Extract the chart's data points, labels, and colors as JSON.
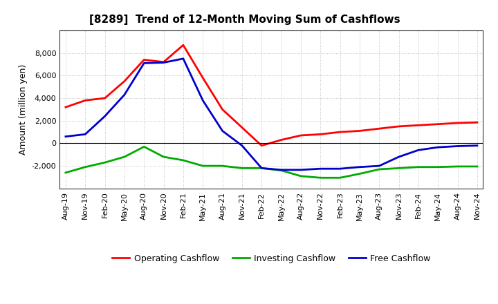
{
  "title": "[8289]  Trend of 12-Month Moving Sum of Cashflows",
  "ylabel": "Amount (million yen)",
  "x_labels": [
    "Aug-19",
    "Nov-19",
    "Feb-20",
    "May-20",
    "Aug-20",
    "Nov-20",
    "Feb-21",
    "May-21",
    "Aug-21",
    "Nov-21",
    "Feb-22",
    "May-22",
    "Aug-22",
    "Nov-22",
    "Feb-23",
    "May-23",
    "Aug-23",
    "Nov-23",
    "Feb-24",
    "May-24",
    "Aug-24",
    "Nov-24"
  ],
  "operating": [
    3200,
    3800,
    4000,
    5500,
    7400,
    7200,
    8700,
    5800,
    3000,
    1400,
    -200,
    300,
    700,
    800,
    1000,
    1100,
    1300,
    1500,
    1600,
    1700,
    1800,
    1850
  ],
  "investing": [
    -2600,
    -2100,
    -1700,
    -1200,
    -300,
    -1200,
    -1500,
    -2000,
    -2000,
    -2200,
    -2200,
    -2400,
    -2900,
    -3050,
    -3050,
    -2700,
    -2300,
    -2200,
    -2100,
    -2100,
    -2050,
    -2050
  ],
  "free": [
    600,
    800,
    2400,
    4300,
    7100,
    7150,
    7500,
    3800,
    1100,
    -200,
    -2200,
    -2350,
    -2350,
    -2250,
    -2250,
    -2100,
    -2000,
    -1200,
    -600,
    -350,
    -250,
    -200
  ],
  "operating_color": "#ff0000",
  "investing_color": "#00aa00",
  "free_color": "#0000cc",
  "ylim": [
    -4000,
    10000
  ],
  "yticks": [
    -2000,
    0,
    2000,
    4000,
    6000,
    8000
  ],
  "background_color": "#ffffff",
  "grid_color": "#999999",
  "legend_labels": [
    "Operating Cashflow",
    "Investing Cashflow",
    "Free Cashflow"
  ]
}
